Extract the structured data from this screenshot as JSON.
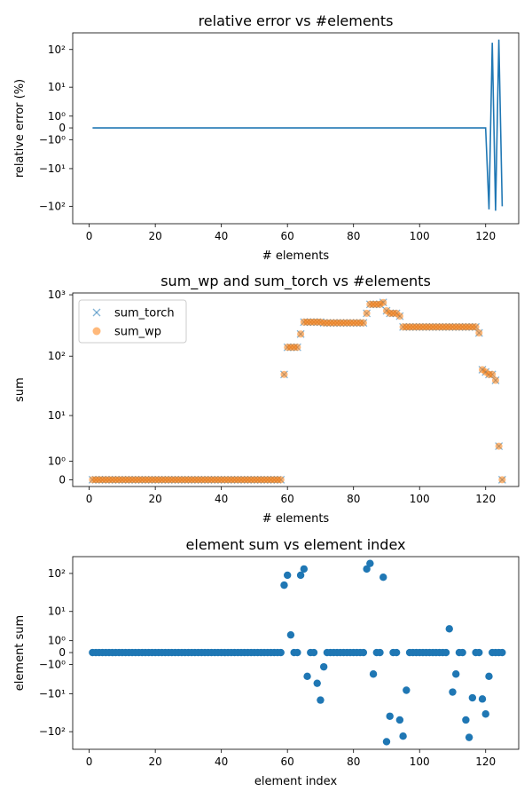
{
  "chart_data": [
    {
      "type": "line",
      "title": "relative error vs #elements",
      "xlabel": "# elements",
      "ylabel": "relative error (%)",
      "yscale": "symlog",
      "xlim": [
        -5,
        130
      ],
      "ylim": [
        -250,
        250
      ],
      "xticks": [
        0,
        20,
        40,
        60,
        80,
        100,
        120
      ],
      "yticks": [
        {
          "value": 100,
          "label": "10²"
        },
        {
          "value": 10,
          "label": "10¹"
        },
        {
          "value": 1,
          "label": "10⁰"
        },
        {
          "value": 0,
          "label": "0"
        },
        {
          "value": -1,
          "label": "−10⁰"
        },
        {
          "value": -10,
          "label": "−10¹"
        },
        {
          "value": -100,
          "label": "−10²"
        }
      ],
      "grid": false,
      "series": [
        {
          "color": "#1f77b4",
          "x": [
            1,
            120,
            121,
            122,
            123,
            124,
            125
          ],
          "y": [
            0,
            0,
            -120,
            150,
            -130,
            180,
            -100
          ]
        }
      ]
    },
    {
      "type": "scatter",
      "title": "sum_wp and sum_torch vs #elements",
      "xlabel": "# elements",
      "ylabel": "sum",
      "yscale": "symlog",
      "xlim": [
        -5,
        130
      ],
      "ylim": [
        -0.3,
        1000
      ],
      "xticks": [
        0,
        20,
        40,
        60,
        80,
        100,
        120
      ],
      "yticks": [
        {
          "value": 1000,
          "label": "10³"
        },
        {
          "value": 100,
          "label": "10²"
        },
        {
          "value": 10,
          "label": "10¹"
        },
        {
          "value": 1,
          "label": "10⁰"
        },
        {
          "value": 0,
          "label": "0"
        }
      ],
      "legend": "top-left",
      "grid": false,
      "series": [
        {
          "name": "sum_torch",
          "marker": "x",
          "color": "#1f77b4",
          "points": "sums"
        },
        {
          "name": "sum_wp",
          "marker": "o",
          "color": "#ff7f0e",
          "points": "sums"
        }
      ],
      "x": [
        1,
        2,
        3,
        4,
        5,
        6,
        7,
        8,
        9,
        10,
        11,
        12,
        13,
        14,
        15,
        16,
        17,
        18,
        19,
        20,
        21,
        22,
        23,
        24,
        25,
        26,
        27,
        28,
        29,
        30,
        31,
        32,
        33,
        34,
        35,
        36,
        37,
        38,
        39,
        40,
        41,
        42,
        43,
        44,
        45,
        46,
        47,
        48,
        49,
        50,
        51,
        52,
        53,
        54,
        55,
        56,
        57,
        58,
        59,
        60,
        61,
        62,
        63,
        64,
        65,
        66,
        67,
        68,
        69,
        70,
        71,
        72,
        73,
        74,
        75,
        76,
        77,
        78,
        79,
        80,
        81,
        82,
        83,
        84,
        85,
        86,
        87,
        88,
        89,
        90,
        91,
        92,
        93,
        94,
        95,
        96,
        97,
        98,
        99,
        100,
        101,
        102,
        103,
        104,
        105,
        106,
        107,
        108,
        109,
        110,
        111,
        112,
        113,
        114,
        115,
        116,
        117,
        118,
        119,
        120,
        121,
        122,
        123,
        124,
        125
      ],
      "sums": [
        0,
        0,
        0,
        0,
        0,
        0,
        0,
        0,
        0,
        0,
        0,
        0,
        0,
        0,
        0,
        0,
        0,
        0,
        0,
        0,
        0,
        0,
        0,
        0,
        0,
        0,
        0,
        0,
        0,
        0,
        0,
        0,
        0,
        0,
        0,
        0,
        0,
        0,
        0,
        0,
        0,
        0,
        0,
        0,
        0,
        0,
        0,
        0,
        0,
        0,
        0,
        0,
        0,
        0,
        0,
        0,
        0,
        0,
        50,
        140,
        140,
        140,
        140,
        230,
        360,
        360,
        360,
        360,
        360,
        360,
        350,
        350,
        350,
        350,
        350,
        350,
        350,
        350,
        350,
        350,
        350,
        350,
        350,
        500,
        700,
        700,
        700,
        700,
        750,
        550,
        500,
        500,
        500,
        450,
        300,
        300,
        300,
        300,
        300,
        300,
        300,
        300,
        300,
        300,
        300,
        300,
        300,
        300,
        300,
        300,
        300,
        300,
        300,
        300,
        300,
        300,
        300,
        240,
        60,
        55,
        50,
        50,
        40,
        2.5,
        0,
        0,
        0,
        0,
        0
      ]
    },
    {
      "type": "scatter",
      "title": "element sum vs element index",
      "xlabel": "element index",
      "ylabel": "element sum",
      "yscale": "symlog",
      "xlim": [
        -5,
        130
      ],
      "ylim": [
        -250,
        250
      ],
      "xticks": [
        0,
        20,
        40,
        60,
        80,
        100,
        120
      ],
      "yticks": [
        {
          "value": 100,
          "label": "10²"
        },
        {
          "value": 10,
          "label": "10¹"
        },
        {
          "value": 1,
          "label": "10⁰"
        },
        {
          "value": 0,
          "label": "0"
        },
        {
          "value": -1,
          "label": "−10⁰"
        },
        {
          "value": -10,
          "label": "−10¹"
        },
        {
          "value": -100,
          "label": "−10²"
        }
      ],
      "grid": false,
      "series": [
        {
          "color": "#1f77b4",
          "x": [
            1,
            2,
            3,
            4,
            5,
            6,
            7,
            8,
            9,
            10,
            11,
            12,
            13,
            14,
            15,
            16,
            17,
            18,
            19,
            20,
            21,
            22,
            23,
            24,
            25,
            26,
            27,
            28,
            29,
            30,
            31,
            32,
            33,
            34,
            35,
            36,
            37,
            38,
            39,
            40,
            41,
            42,
            43,
            44,
            45,
            46,
            47,
            48,
            49,
            50,
            51,
            52,
            53,
            54,
            55,
            56,
            57,
            58,
            59,
            60,
            61,
            62,
            63,
            64,
            65,
            66,
            67,
            68,
            69,
            70,
            71,
            72,
            73,
            74,
            75,
            76,
            77,
            78,
            79,
            80,
            81,
            82,
            83,
            84,
            85,
            86,
            87,
            88,
            89,
            90,
            91,
            92,
            93,
            94,
            95,
            96,
            97,
            98,
            99,
            100,
            101,
            102,
            103,
            104,
            105,
            106,
            107,
            108,
            109,
            110,
            111,
            112,
            113,
            114,
            115,
            116,
            117,
            118,
            119,
            120,
            121,
            122,
            123,
            124,
            125
          ],
          "y": [
            0,
            0,
            0,
            0,
            0,
            0,
            0,
            0,
            0,
            0,
            0,
            0,
            0,
            0,
            0,
            0,
            0,
            0,
            0,
            0,
            0,
            0,
            0,
            0,
            0,
            0,
            0,
            0,
            0,
            0,
            0,
            0,
            0,
            0,
            0,
            0,
            0,
            0,
            0,
            0,
            0,
            0,
            0,
            0,
            0,
            0,
            0,
            0,
            0,
            0,
            0,
            0,
            0,
            0,
            0,
            0,
            0,
            0,
            50,
            90,
            1.8,
            0,
            0,
            90,
            130,
            -3,
            0,
            0,
            -5,
            -15,
            -1.3,
            0,
            0,
            0,
            0,
            0,
            0,
            0,
            0,
            0,
            0,
            0,
            0,
            130,
            180,
            -2.5,
            0,
            0,
            80,
            -180,
            -40,
            0,
            0,
            -50,
            -130,
            -8,
            0,
            0,
            0,
            0,
            0,
            0,
            0,
            0,
            0,
            0,
            0,
            0,
            3,
            -9,
            -2.5,
            0,
            0,
            -50,
            -140,
            -13,
            0,
            0,
            -14,
            -35,
            -3,
            0,
            0,
            0,
            0
          ]
        }
      ]
    }
  ]
}
